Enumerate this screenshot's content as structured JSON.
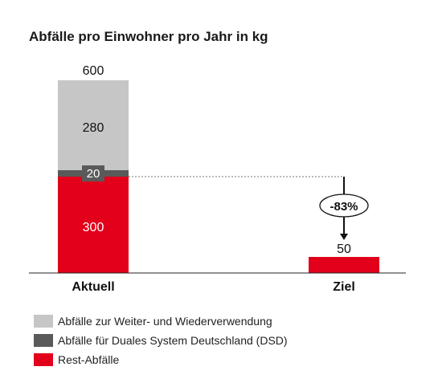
{
  "chart_data": {
    "type": "bar",
    "title": "Abfälle pro Einwohner pro Jahr in kg",
    "categories": [
      "Aktuell",
      "Ziel"
    ],
    "series": [
      {
        "name": "Rest-Abfälle",
        "values": [
          300,
          50
        ],
        "color": "#e2001a"
      },
      {
        "name": "Abfälle für Duales System Deutschland (DSD)",
        "values": [
          20,
          0
        ],
        "color": "#5a5a5a"
      },
      {
        "name": "Abfälle zur Weiter- und Wiederverwendung",
        "values": [
          280,
          0
        ],
        "color": "#c6c6c6"
      }
    ],
    "totals": [
      "600",
      "50"
    ],
    "data_labels": [
      "300",
      "20",
      "280"
    ],
    "reduction_label": "-83%",
    "ylim": [
      0,
      600
    ],
    "grid": false,
    "legend_position": "bottom-left",
    "legend": [
      {
        "label": "Abfälle zur Weiter- und Wiederverwendung",
        "color": "#c6c6c6"
      },
      {
        "label": "Abfälle für Duales System Deutschland (DSD)",
        "color": "#5a5a5a"
      },
      {
        "label": "Rest-Abfälle",
        "color": "#e2001a"
      }
    ]
  }
}
